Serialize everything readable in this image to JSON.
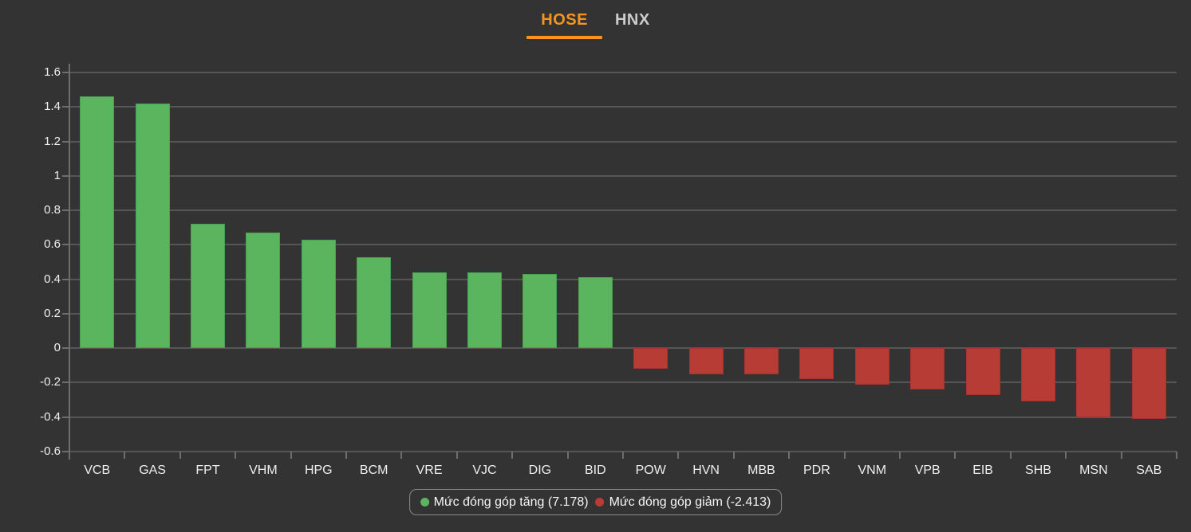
{
  "tabs": {
    "hose_label": "HOSE",
    "hnx_label": "HNX",
    "active": "HOSE"
  },
  "colors": {
    "background": "#333333",
    "positive": "#5bb55e",
    "negative": "#b83c36",
    "accent": "#f6941e",
    "grid": "#565656",
    "axis_text": "#f0f0f0",
    "inactive_tab": "#cccccc"
  },
  "legend": {
    "increase_label": "Mức đóng góp tăng (7.178)",
    "decrease_label": "Mức đóng góp giảm (-2.413)"
  },
  "chart_data": {
    "type": "bar",
    "title": "",
    "xlabel": "",
    "ylabel": "",
    "categories": [
      "VCB",
      "GAS",
      "FPT",
      "VHM",
      "HPG",
      "BCM",
      "VRE",
      "VJC",
      "DIG",
      "BID",
      "POW",
      "HVN",
      "MBB",
      "PDR",
      "VNM",
      "VPB",
      "EIB",
      "SHB",
      "MSN",
      "SAB"
    ],
    "values": [
      1.46,
      1.42,
      0.72,
      0.67,
      0.63,
      0.53,
      0.44,
      0.44,
      0.43,
      0.41,
      -0.12,
      -0.15,
      -0.15,
      -0.18,
      -0.21,
      -0.24,
      -0.27,
      -0.31,
      -0.4,
      -0.41
    ],
    "positive_total": 7.178,
    "negative_total": -2.413,
    "ylim": [
      -0.6,
      1.6
    ],
    "y_tick_labels": [
      "1.6",
      "1.4",
      "1.2",
      "1",
      "0.8",
      "0.6",
      "0.4",
      "0.2",
      "0",
      "-0.2",
      "-0.4",
      "-0.6"
    ],
    "y_tick_values": [
      1.6,
      1.4,
      1.2,
      1.0,
      0.8,
      0.6,
      0.4,
      0.2,
      0,
      -0.2,
      -0.4,
      -0.6
    ],
    "grid": true,
    "legend_position": "bottom"
  }
}
